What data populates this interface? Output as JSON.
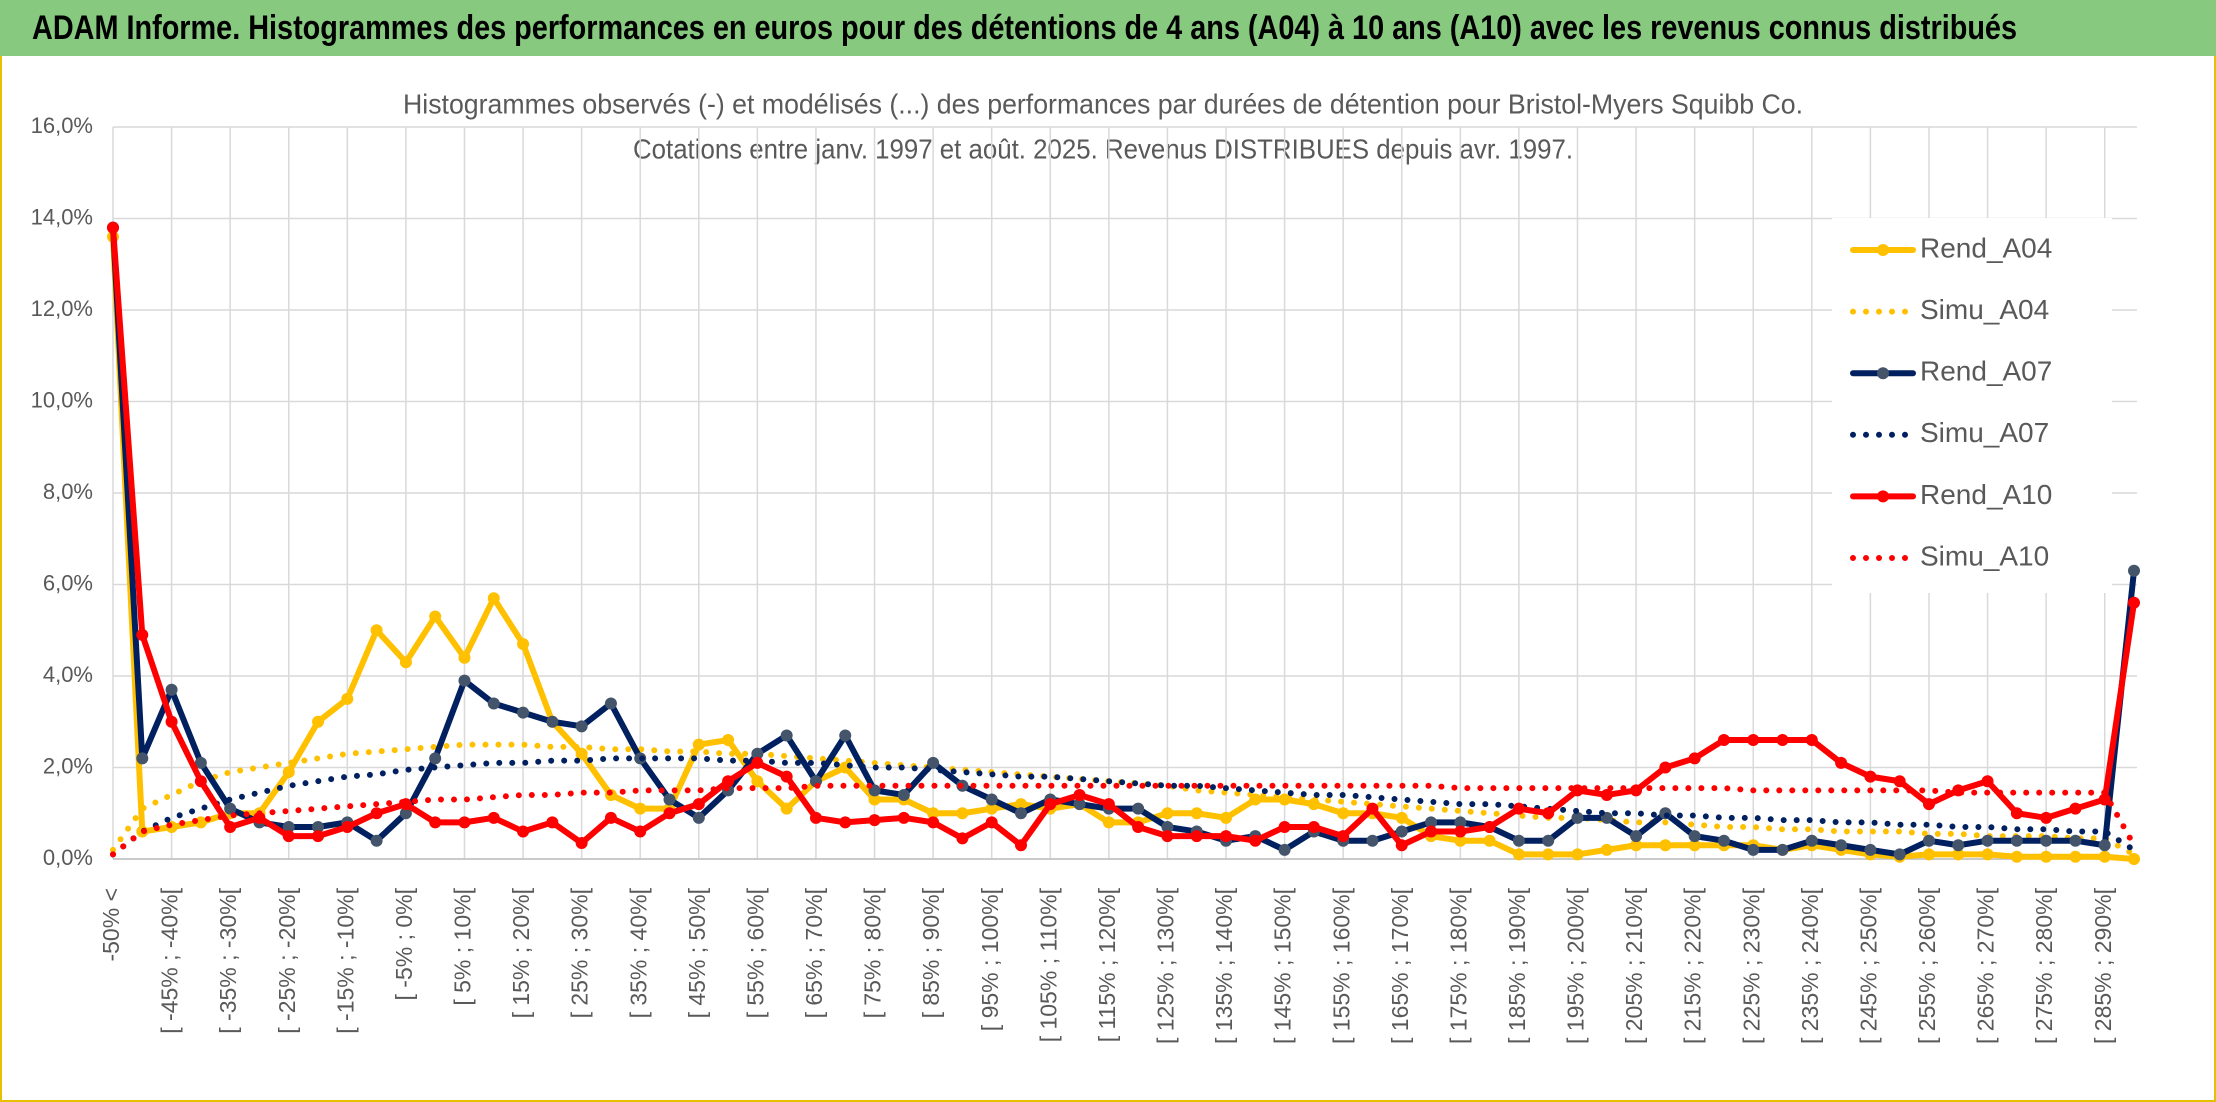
{
  "header": {
    "title": "ADAM Informe. Histogrammes des performances en euros pour des détentions de 4 ans (A04) à 10 ans (A10) avec les revenus connus distribués"
  },
  "chart_data": {
    "type": "line",
    "title": "Histogrammes observés (-) et modélisés (...) des performances par durées de détention pour Bristol-Myers Squibb Co.",
    "subtitle": "Cotations entre janv. 1997 et août. 2025. Revenus DISTRIBUES depuis avr. 1997.",
    "categories": [
      "-50% <",
      null,
      "[ -45% ; -40%[",
      null,
      "[ -35% ; -30%[",
      null,
      "[ -25% ; -20%[",
      null,
      "[ -15% ; -10%[",
      null,
      "[ -5% ; 0%[",
      null,
      "[ 5% ; 10%[",
      null,
      "[ 15% ; 20%[",
      null,
      "[ 25% ; 30%[",
      null,
      "[ 35% ; 40%[",
      null,
      "[ 45% ; 50%[",
      null,
      "[ 55% ; 60%[",
      null,
      "[ 65% ; 70%[",
      null,
      "[ 75% ; 80%[",
      null,
      "[ 85% ; 90%[",
      null,
      "[ 95% ; 100%[",
      null,
      "[ 105% ; 110%[",
      null,
      "[ 115% ; 120%[",
      null,
      "[ 125% ; 130%[",
      null,
      "[ 135% ; 140%[",
      null,
      "[ 145% ; 150%[",
      null,
      "[ 155% ; 160%[",
      null,
      "[ 165% ; 170%[",
      null,
      "[ 175% ; 180%[",
      null,
      "[ 185% ; 190%[",
      null,
      "[ 195% ; 200%[",
      null,
      "[ 205% ; 210%[",
      null,
      "[ 215% ; 220%[",
      null,
      "[ 225% ; 230%[",
      null,
      "[ 235% ; 240%[",
      null,
      "[ 245% ; 250%[",
      null,
      "[ 255% ; 260%[",
      null,
      "[ 265% ; 270%[",
      null,
      "[ 275% ; 280%[",
      null,
      "[ 285% ; 290%[",
      null
    ],
    "ylim": [
      0,
      16
    ],
    "yticks": [
      {
        "value": 0,
        "label": "0,0%"
      },
      {
        "value": 2,
        "label": "2,0%"
      },
      {
        "value": 4,
        "label": "4,0%"
      },
      {
        "value": 6,
        "label": "6,0%"
      },
      {
        "value": 8,
        "label": "8,0%"
      },
      {
        "value": 10,
        "label": "10,0%"
      },
      {
        "value": 12,
        "label": "12,0%"
      },
      {
        "value": 14,
        "label": "14,0%"
      },
      {
        "value": 16,
        "label": "16,0%"
      }
    ],
    "grid": true,
    "legend": "right",
    "series": [
      {
        "name": "Rend_A04",
        "color": "#ffc000",
        "line_style": "solid",
        "markers": true,
        "values": [
          13.6,
          0.6,
          0.7,
          0.8,
          1.0,
          1.0,
          1.9,
          3.0,
          3.5,
          5.0,
          4.3,
          5.3,
          4.4,
          5.7,
          4.7,
          3.0,
          2.3,
          1.4,
          1.1,
          1.1,
          2.5,
          2.6,
          1.7,
          1.1,
          1.7,
          2.0,
          1.3,
          1.3,
          1.0,
          1.0,
          1.1,
          1.2,
          1.1,
          1.2,
          0.8,
          0.8,
          1.0,
          1.0,
          0.9,
          1.3,
          1.3,
          1.2,
          1.0,
          1.0,
          0.9,
          0.5,
          0.4,
          0.4,
          0.1,
          0.1,
          0.1,
          0.2,
          0.3,
          0.3,
          0.3,
          0.3,
          0.3,
          0.2,
          0.3,
          0.2,
          0.1,
          0.05,
          0.1,
          0.1,
          0.1,
          0.05,
          0.05,
          0.05,
          0.05,
          0.0
        ]
      },
      {
        "name": "Simu_A04",
        "color": "#ffc000",
        "line_style": "dotted",
        "markers": false,
        "values": [
          0.2,
          1.1,
          1.4,
          1.7,
          1.9,
          2.0,
          2.1,
          2.2,
          2.3,
          2.35,
          2.4,
          2.45,
          2.5,
          2.5,
          2.5,
          2.45,
          2.45,
          2.4,
          2.4,
          2.35,
          2.35,
          2.3,
          2.3,
          2.25,
          2.2,
          2.15,
          2.1,
          2.05,
          2.0,
          1.95,
          1.9,
          1.85,
          1.8,
          1.75,
          1.7,
          1.65,
          1.6,
          1.5,
          1.45,
          1.4,
          1.35,
          1.3,
          1.25,
          1.2,
          1.15,
          1.1,
          1.05,
          1.0,
          0.95,
          0.9,
          0.9,
          0.85,
          0.8,
          0.8,
          0.75,
          0.7,
          0.7,
          0.65,
          0.65,
          0.6,
          0.6,
          0.6,
          0.55,
          0.55,
          0.5,
          0.5,
          0.5,
          0.45,
          0.45,
          0.1
        ]
      },
      {
        "name": "Rend_A07",
        "color": "#002060",
        "marker_color": "#44546a",
        "line_style": "solid",
        "markers": true,
        "values": [
          13.8,
          2.2,
          3.7,
          2.1,
          1.1,
          0.8,
          0.7,
          0.7,
          0.8,
          0.4,
          1.0,
          2.2,
          3.9,
          3.4,
          3.2,
          3.0,
          2.9,
          3.4,
          2.2,
          1.3,
          0.9,
          1.5,
          2.3,
          2.7,
          1.7,
          2.7,
          1.5,
          1.4,
          2.1,
          1.6,
          1.3,
          1.0,
          1.3,
          1.2,
          1.1,
          1.1,
          0.7,
          0.6,
          0.4,
          0.5,
          0.2,
          0.6,
          0.4,
          0.4,
          0.6,
          0.8,
          0.8,
          0.7,
          0.4,
          0.4,
          0.9,
          0.9,
          0.5,
          1.0,
          0.5,
          0.4,
          0.2,
          0.2,
          0.4,
          0.3,
          0.2,
          0.1,
          0.4,
          0.3,
          0.4,
          0.4,
          0.4,
          0.4,
          0.3,
          6.3
        ]
      },
      {
        "name": "Simu_A07",
        "color": "#002060",
        "line_style": "dotted",
        "markers": false,
        "values": [
          0.1,
          0.6,
          0.9,
          1.1,
          1.3,
          1.45,
          1.6,
          1.7,
          1.8,
          1.85,
          1.95,
          2.0,
          2.05,
          2.1,
          2.1,
          2.15,
          2.15,
          2.2,
          2.2,
          2.2,
          2.2,
          2.15,
          2.15,
          2.1,
          2.1,
          2.05,
          2.0,
          2.0,
          1.95,
          1.9,
          1.85,
          1.8,
          1.8,
          1.75,
          1.7,
          1.65,
          1.6,
          1.6,
          1.55,
          1.5,
          1.45,
          1.4,
          1.4,
          1.35,
          1.3,
          1.25,
          1.2,
          1.2,
          1.15,
          1.1,
          1.05,
          1.0,
          1.0,
          0.95,
          0.95,
          0.9,
          0.9,
          0.85,
          0.85,
          0.8,
          0.8,
          0.75,
          0.75,
          0.7,
          0.7,
          0.65,
          0.65,
          0.6,
          0.6,
          0.2
        ]
      },
      {
        "name": "Rend_A10",
        "color": "#ff0000",
        "line_style": "solid",
        "markers": true,
        "values": [
          13.8,
          4.9,
          3.0,
          1.7,
          0.7,
          0.9,
          0.5,
          0.5,
          0.7,
          1.0,
          1.2,
          0.8,
          0.8,
          0.9,
          0.6,
          0.8,
          0.35,
          0.9,
          0.6,
          1.0,
          1.2,
          1.7,
          2.1,
          1.8,
          0.9,
          0.8,
          0.85,
          0.9,
          0.8,
          0.45,
          0.8,
          0.3,
          1.2,
          1.4,
          1.2,
          0.7,
          0.5,
          0.5,
          0.5,
          0.4,
          0.7,
          0.7,
          0.5,
          1.1,
          0.3,
          0.6,
          0.6,
          0.7,
          1.1,
          1.0,
          1.5,
          1.4,
          1.5,
          2.0,
          2.2,
          2.6,
          2.6,
          2.6,
          2.6,
          2.1,
          1.8,
          1.7,
          1.2,
          1.5,
          1.7,
          1.0,
          0.9,
          1.1,
          1.3,
          5.6
        ]
      },
      {
        "name": "Simu_A10",
        "color": "#ff0000",
        "line_style": "dotted",
        "markers": false,
        "values": [
          0.1,
          0.6,
          0.75,
          0.85,
          0.95,
          1.0,
          1.05,
          1.1,
          1.15,
          1.2,
          1.25,
          1.3,
          1.3,
          1.35,
          1.4,
          1.4,
          1.45,
          1.45,
          1.5,
          1.5,
          1.5,
          1.55,
          1.55,
          1.55,
          1.6,
          1.6,
          1.6,
          1.6,
          1.6,
          1.6,
          1.6,
          1.6,
          1.6,
          1.6,
          1.6,
          1.6,
          1.6,
          1.6,
          1.6,
          1.6,
          1.6,
          1.6,
          1.6,
          1.6,
          1.6,
          1.6,
          1.55,
          1.55,
          1.55,
          1.55,
          1.55,
          1.55,
          1.55,
          1.55,
          1.55,
          1.55,
          1.5,
          1.5,
          1.5,
          1.5,
          1.5,
          1.5,
          1.5,
          1.45,
          1.45,
          1.45,
          1.45,
          1.45,
          1.45,
          0.3
        ]
      }
    ]
  }
}
